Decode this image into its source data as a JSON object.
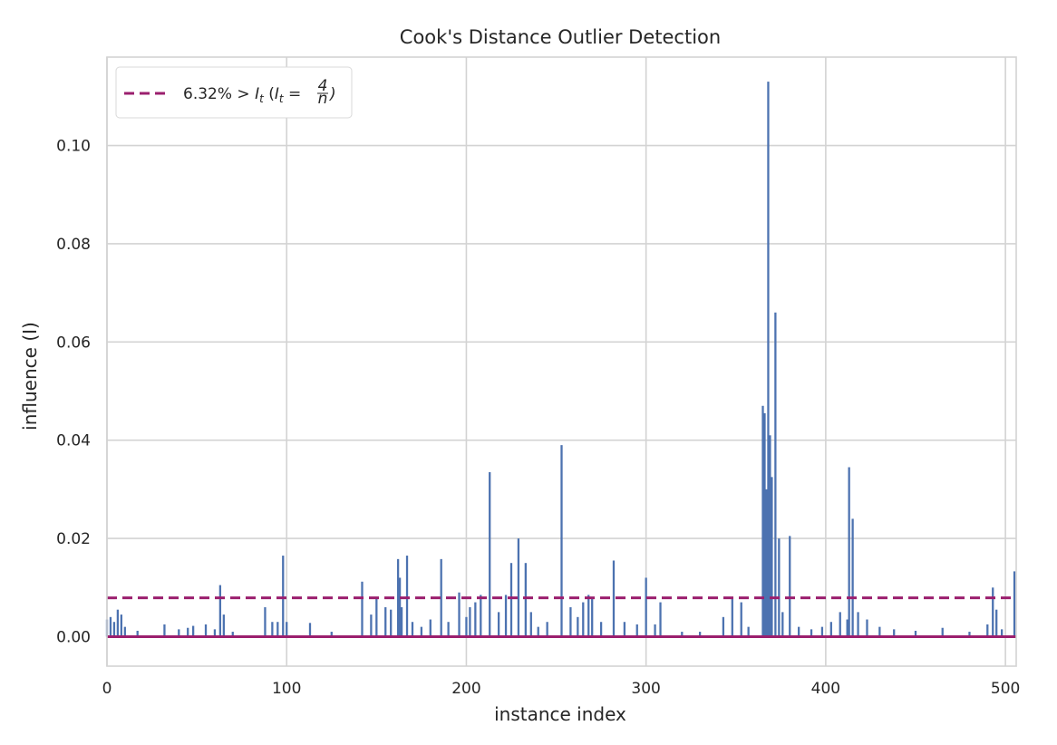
{
  "chart_data": {
    "type": "bar",
    "title": "Cook's Distance Outlier Detection",
    "xlabel": "instance index",
    "ylabel": "influence (I)",
    "xlim": [
      0,
      506
    ],
    "ylim": [
      -0.006,
      0.118
    ],
    "xticks": [
      0,
      100,
      200,
      300,
      400,
      500
    ],
    "xtick_labels": [
      "0",
      "100",
      "200",
      "300",
      "400",
      "500"
    ],
    "yticks": [
      0.0,
      0.02,
      0.04,
      0.06,
      0.08,
      0.1
    ],
    "ytick_labels": [
      "0.00",
      "0.02",
      "0.04",
      "0.06",
      "0.08",
      "0.10"
    ],
    "grid": true,
    "legend_position": "top-left",
    "legend": {
      "label_prefix": "6.32% > ",
      "label_It": "I",
      "label_sub": "t",
      "label_mid": " (",
      "label_eq": " = ",
      "label_num": "4",
      "label_den": "n",
      "label_close": ")"
    },
    "threshold": 0.0079,
    "colors": {
      "bars": "#4c72b0",
      "threshold": "#9b1f6e",
      "baseline": "#9b1f6e",
      "grid": "#d3d3d3",
      "frame": "#d3d3d3"
    },
    "spikes": [
      [
        0,
        0.0035
      ],
      [
        2,
        0.004
      ],
      [
        4,
        0.003
      ],
      [
        6,
        0.0055
      ],
      [
        8,
        0.0045
      ],
      [
        10,
        0.002
      ],
      [
        17,
        0.0012
      ],
      [
        32,
        0.0025
      ],
      [
        40,
        0.0015
      ],
      [
        45,
        0.0018
      ],
      [
        48,
        0.0022
      ],
      [
        55,
        0.0025
      ],
      [
        60,
        0.0015
      ],
      [
        63,
        0.0105
      ],
      [
        65,
        0.0045
      ],
      [
        70,
        0.001
      ],
      [
        88,
        0.006
      ],
      [
        92,
        0.003
      ],
      [
        95,
        0.003
      ],
      [
        98,
        0.0165
      ],
      [
        100,
        0.003
      ],
      [
        113,
        0.0028
      ],
      [
        125,
        0.001
      ],
      [
        142,
        0.0112
      ],
      [
        147,
        0.0045
      ],
      [
        150,
        0.008
      ],
      [
        155,
        0.006
      ],
      [
        158,
        0.0055
      ],
      [
        162,
        0.0158
      ],
      [
        163,
        0.012
      ],
      [
        164,
        0.006
      ],
      [
        167,
        0.0165
      ],
      [
        170,
        0.003
      ],
      [
        175,
        0.002
      ],
      [
        180,
        0.0035
      ],
      [
        186,
        0.0158
      ],
      [
        190,
        0.003
      ],
      [
        196,
        0.009
      ],
      [
        200,
        0.004
      ],
      [
        202,
        0.006
      ],
      [
        205,
        0.007
      ],
      [
        208,
        0.0085
      ],
      [
        213,
        0.0335
      ],
      [
        218,
        0.005
      ],
      [
        222,
        0.0085
      ],
      [
        225,
        0.015
      ],
      [
        229,
        0.02
      ],
      [
        233,
        0.015
      ],
      [
        236,
        0.005
      ],
      [
        240,
        0.002
      ],
      [
        245,
        0.003
      ],
      [
        253,
        0.039
      ],
      [
        258,
        0.006
      ],
      [
        262,
        0.004
      ],
      [
        265,
        0.007
      ],
      [
        268,
        0.0085
      ],
      [
        270,
        0.008
      ],
      [
        275,
        0.003
      ],
      [
        282,
        0.0155
      ],
      [
        288,
        0.003
      ],
      [
        295,
        0.0025
      ],
      [
        300,
        0.012
      ],
      [
        305,
        0.0025
      ],
      [
        308,
        0.007
      ],
      [
        320,
        0.001
      ],
      [
        330,
        0.001
      ],
      [
        343,
        0.004
      ],
      [
        348,
        0.008
      ],
      [
        353,
        0.007
      ],
      [
        357,
        0.002
      ],
      [
        365,
        0.047
      ],
      [
        366,
        0.0455
      ],
      [
        367,
        0.03
      ],
      [
        368,
        0.113
      ],
      [
        369,
        0.041
      ],
      [
        370,
        0.0325
      ],
      [
        372,
        0.066
      ],
      [
        374,
        0.02
      ],
      [
        376,
        0.005
      ],
      [
        380,
        0.0205
      ],
      [
        385,
        0.002
      ],
      [
        392,
        0.0015
      ],
      [
        398,
        0.002
      ],
      [
        403,
        0.003
      ],
      [
        408,
        0.005
      ],
      [
        412,
        0.0035
      ],
      [
        413,
        0.0345
      ],
      [
        415,
        0.024
      ],
      [
        418,
        0.005
      ],
      [
        423,
        0.0035
      ],
      [
        430,
        0.002
      ],
      [
        438,
        0.0015
      ],
      [
        450,
        0.0012
      ],
      [
        465,
        0.0018
      ],
      [
        480,
        0.001
      ],
      [
        490,
        0.0025
      ],
      [
        493,
        0.01
      ],
      [
        495,
        0.0055
      ],
      [
        498,
        0.0015
      ],
      [
        505,
        0.0133
      ]
    ]
  }
}
